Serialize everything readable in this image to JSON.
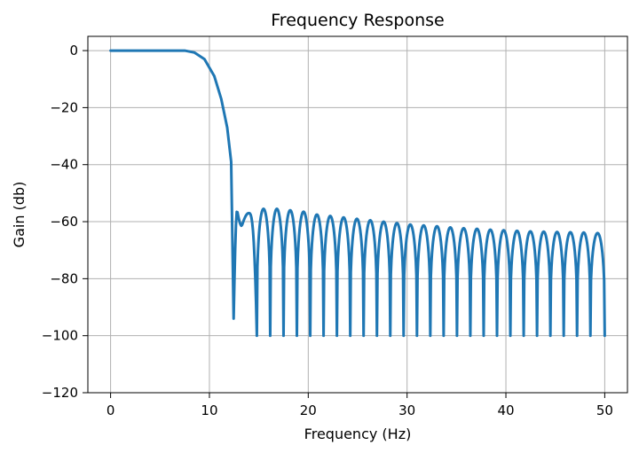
{
  "chart_data": {
    "type": "line",
    "title": "Frequency Response",
    "xlabel": "Frequency (Hz)",
    "ylabel": "Gain (db)",
    "xlim": [
      -2.3,
      52.3
    ],
    "ylim": [
      -120,
      5
    ],
    "xticks": [
      0,
      10,
      20,
      30,
      40,
      50
    ],
    "yticks": [
      0,
      -20,
      -40,
      -60,
      -80,
      -100,
      -120
    ],
    "xtick_labels": [
      "0",
      "10",
      "20",
      "30",
      "40",
      "50"
    ],
    "ytick_labels": [
      "0",
      "−20",
      "−40",
      "−60",
      "−80",
      "−100",
      "−120"
    ],
    "grid": true,
    "series": [
      {
        "name": "gain",
        "color": "#1f77b4",
        "passband": {
          "x": [
            0,
            7.5,
            8.5,
            9.5,
            10.5,
            11.2,
            11.8,
            12.2,
            12.45
          ],
          "y": [
            0,
            0,
            -0.7,
            -3,
            -9,
            -17,
            -27,
            -39,
            -94
          ]
        },
        "first_lobe": {
          "start": 12.45,
          "end": 14.8,
          "peak": -56,
          "dip": -61.5
        },
        "nulls_bottom": -100,
        "nulls": [
          14.8,
          16.15,
          17.5,
          18.85,
          20.2,
          21.55,
          22.9,
          24.25,
          25.6,
          26.95,
          28.3,
          29.65,
          31.0,
          32.35,
          33.7,
          35.05,
          36.4,
          37.75,
          39.1,
          40.45,
          41.8,
          43.15,
          44.5,
          45.85,
          47.2,
          48.55,
          50.0
        ],
        "sidelobe_peaks": [
          -55.5,
          -55.5,
          -56,
          -56.5,
          -57.5,
          -58,
          -58.5,
          -59,
          -59.5,
          -60,
          -60.5,
          -61,
          -61.3,
          -61.6,
          -62,
          -62.3,
          -62.5,
          -62.8,
          -63,
          -63.2,
          -63.4,
          -63.5,
          -63.6,
          -63.7,
          -63.8,
          -64
        ]
      }
    ]
  }
}
